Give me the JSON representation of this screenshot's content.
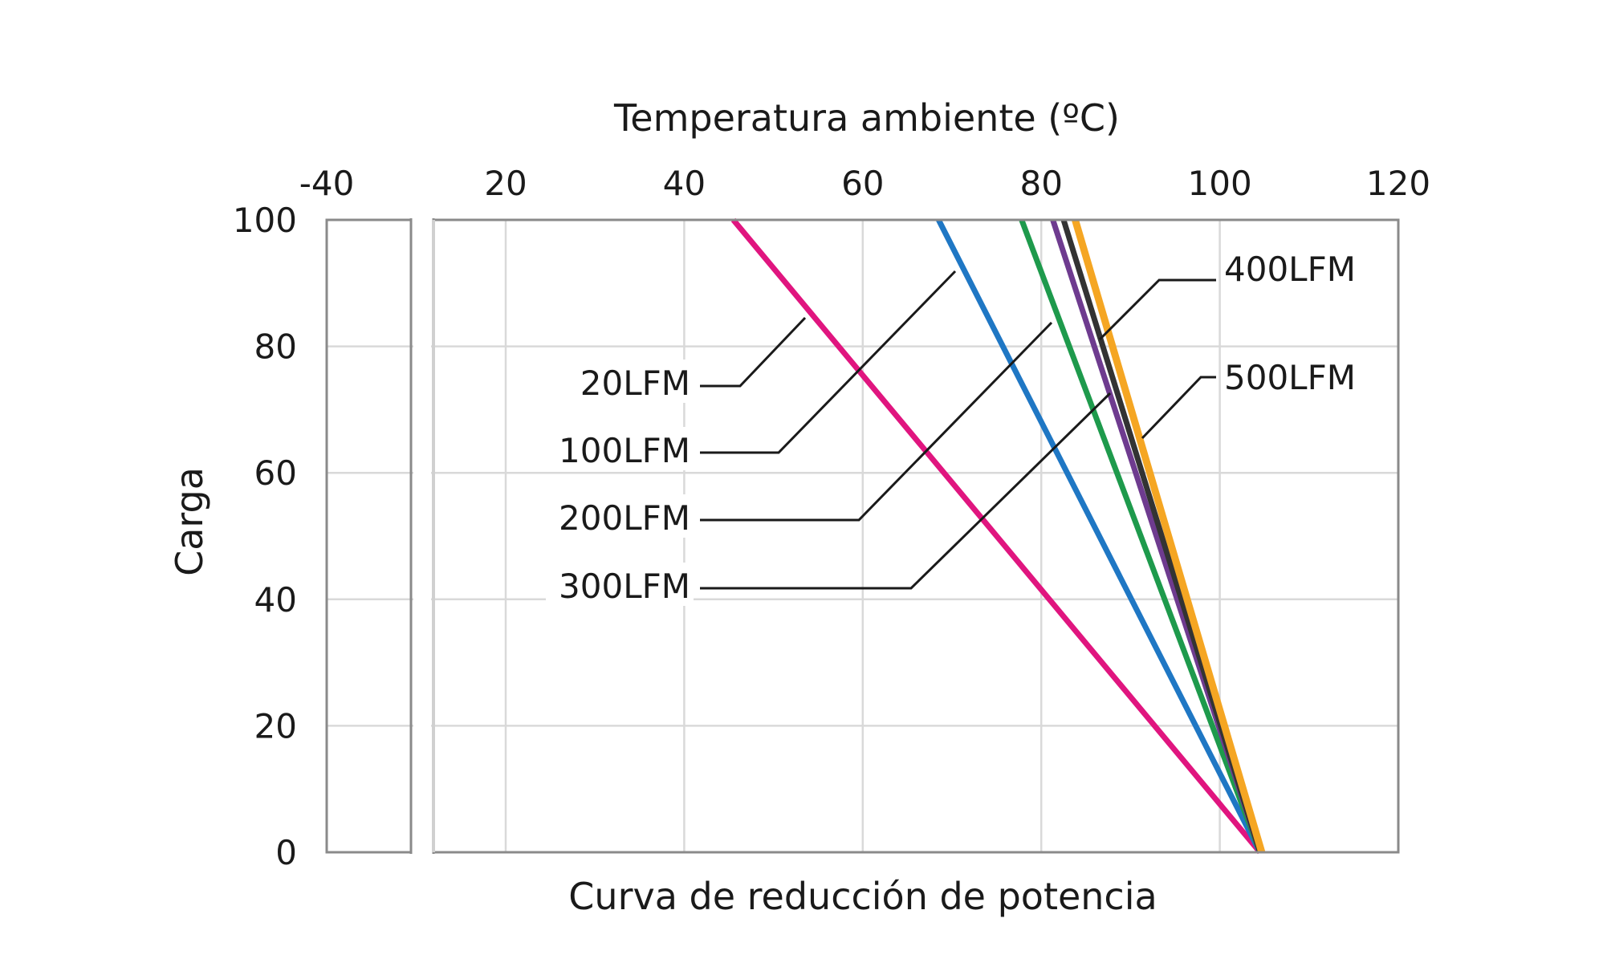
{
  "chart_data": {
    "type": "line",
    "title": "Curva de reducción de potencia",
    "xlabel": "Temperatura ambiente (ºC)",
    "ylabel": "Carga",
    "x_axis_position": "top",
    "x_axis_break": "between -40 and 20",
    "xlim": [
      -40,
      120
    ],
    "ylim": [
      0,
      100
    ],
    "x_ticks": [
      "-40",
      "20",
      "40",
      "60",
      "80",
      "100",
      "120"
    ],
    "y_ticks": [
      "100",
      "80",
      "60",
      "40",
      "20",
      "0"
    ],
    "grid": true,
    "legend": "callout labels with leader lines",
    "series": [
      {
        "name": "20LFM",
        "color": "#e0157f",
        "x": [
          45.5,
          104.5
        ],
        "y": [
          100,
          0
        ]
      },
      {
        "name": "100LFM",
        "color": "#1f77c4",
        "x": [
          68.5,
          104.5
        ],
        "y": [
          100,
          0
        ]
      },
      {
        "name": "200LFM",
        "color": "#1e9a4c",
        "x": [
          77.8,
          104.5
        ],
        "y": [
          100,
          0
        ]
      },
      {
        "name": "300LFM",
        "color": "#6e3b8f",
        "x": [
          81.3,
          104.5
        ],
        "y": [
          100,
          0
        ]
      },
      {
        "name": "400LFM",
        "color": "#333333",
        "x": [
          82.5,
          104.5
        ],
        "y": [
          100,
          0
        ]
      },
      {
        "name": "500LFM",
        "color": "#f5a623",
        "x": [
          83.8,
          104.7
        ],
        "y": [
          100,
          0
        ]
      }
    ]
  }
}
